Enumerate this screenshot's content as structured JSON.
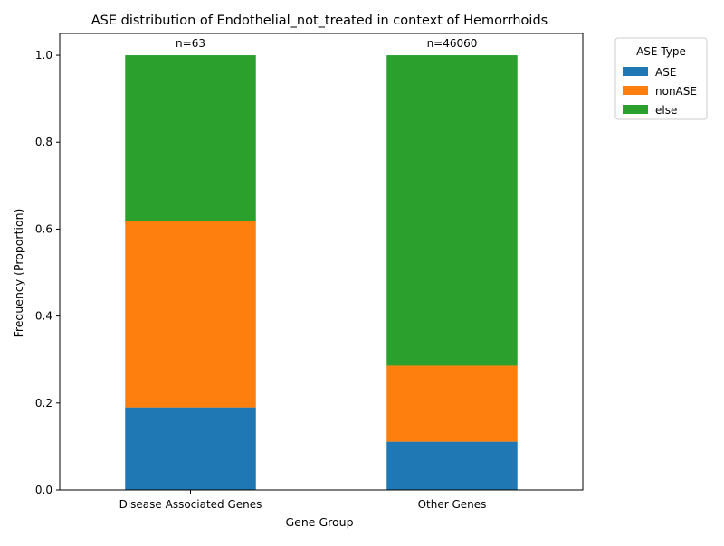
{
  "chart_data": {
    "type": "bar",
    "stacked": true,
    "title": "ASE distribution of Endothelial_not_treated in context of Hemorrhoids",
    "xlabel": "Gene Group",
    "ylabel": "Frequency (Proportion)",
    "categories": [
      "Disease Associated Genes",
      "Other Genes"
    ],
    "counts": [
      "n=63",
      "n=46060"
    ],
    "ylim": [
      0,
      1.05
    ],
    "yticks": [
      0.0,
      0.2,
      0.4,
      0.6,
      0.8,
      1.0
    ],
    "ytick_labels": [
      "0.0",
      "0.2",
      "0.4",
      "0.6",
      "0.8",
      "1.0"
    ],
    "grid": false,
    "series": [
      {
        "name": "ASE",
        "color": "#1f77b4",
        "values": [
          0.19,
          0.111
        ]
      },
      {
        "name": "nonASE",
        "color": "#ff7f0e",
        "values": [
          0.429,
          0.175
        ]
      },
      {
        "name": "else",
        "color": "#2ca02c",
        "values": [
          0.381,
          0.714
        ]
      }
    ],
    "legend": {
      "title": "ASE Type",
      "position": "outside top-right"
    }
  }
}
